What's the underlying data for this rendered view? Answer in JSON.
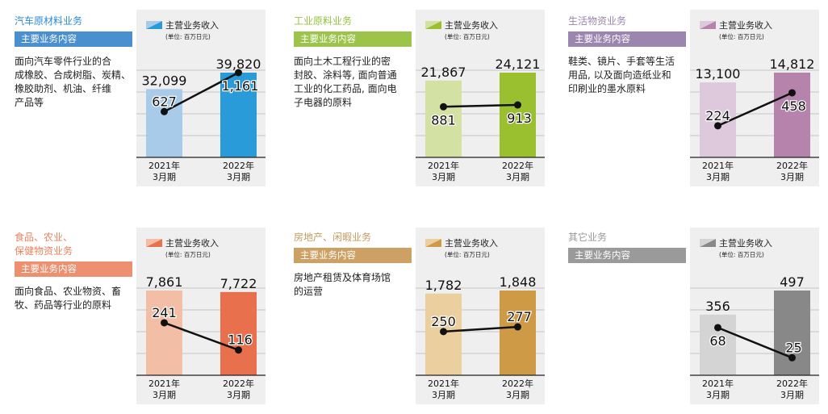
{
  "legend_label": "主营业务收入",
  "unit": "(单位: 百万日元)",
  "subtitle": "主要业务内容",
  "chart_data": [
    {
      "type": "bar+line",
      "title": "汽车原材料业务",
      "description": "面向汽车零件行业的合\n成橡胶、合成树脂、炭精、\n橡胶助剂、机油、纤维\n产品等",
      "categories": [
        "2021年\n3月期",
        "2022年\n3月期"
      ],
      "bar_values": [
        32099,
        39820
      ],
      "bar_labels": [
        "32,099",
        "39,820"
      ],
      "line_values": [
        627,
        1161
      ],
      "line_labels": [
        "627",
        "1,161"
      ],
      "bar_ylim": [
        0,
        39820
      ],
      "line_ylim": [
        0,
        1161
      ],
      "colors": {
        "title": "#2a8bd2",
        "sub": "#4a8fd0",
        "bar1": "#a9cbea",
        "bar2": "#2a9bd9"
      }
    },
    {
      "type": "bar+line",
      "title": "工业原料业务",
      "description": "面向土木工程行业的密\n封胶、涂料等, 面向普通\n工业的化工药品, 面向电\n子电器的原料",
      "categories": [
        "2021年\n3月期",
        "2022年\n3月期"
      ],
      "bar_values": [
        21867,
        24121
      ],
      "bar_labels": [
        "21,867",
        "24,121"
      ],
      "line_values": [
        881,
        913
      ],
      "line_labels": [
        "881",
        "913"
      ],
      "bar_ylim": [
        0,
        24121
      ],
      "line_ylim": [
        0,
        1475
      ],
      "colors": {
        "title": "#94c13e",
        "sub": "#9cc44a",
        "bar1": "#d3e1a2",
        "bar2": "#9abf2f"
      }
    },
    {
      "type": "bar+line",
      "title": "生活物资业务",
      "description": "鞋类、镜片、手套等生活\n用品, 以及面向造纸业和\n印刷业的墨水原料",
      "categories": [
        "2021年\n3月期",
        "2022年\n3月期"
      ],
      "bar_values": [
        13100,
        14812
      ],
      "bar_labels": [
        "13,100",
        "14,812"
      ],
      "line_values": [
        224,
        458
      ],
      "line_labels": [
        "224",
        "458"
      ],
      "bar_ylim": [
        0,
        14812
      ],
      "line_ylim": [
        0,
        601
      ],
      "colors": {
        "title": "#9a84ad",
        "sub": "#9b86b0",
        "bar1": "#ddc8dc",
        "bar2": "#b583ab"
      }
    },
    {
      "type": "bar+line",
      "title": "食品、农业、\n保健物资业务",
      "description": "面向食品、农业物资、畜\n牧、药品等行业的原料",
      "categories": [
        "2021年\n3月期",
        "2022年\n3月期"
      ],
      "bar_values": [
        7861,
        7722
      ],
      "bar_labels": [
        "7,861",
        "7,722"
      ],
      "line_values": [
        241,
        116
      ],
      "line_labels": [
        "241",
        "116"
      ],
      "bar_ylim": [
        0,
        7861
      ],
      "line_ylim": [
        0,
        389
      ],
      "colors": {
        "title": "#e8835f",
        "sub": "#ec9070",
        "bar1": "#f2bfa6",
        "bar2": "#e8704d"
      }
    },
    {
      "type": "bar+line",
      "title": "房地产、闲暇业务",
      "description": "房地产租赁及体育场馆\n的运营",
      "categories": [
        "2021年\n3月期",
        "2022年\n3月期"
      ],
      "bar_values": [
        1782,
        1848
      ],
      "bar_labels": [
        "1,782",
        "1,848"
      ],
      "line_values": [
        250,
        277
      ],
      "line_labels": [
        "250",
        "277"
      ],
      "bar_ylim": [
        0,
        1848
      ],
      "line_ylim": [
        0,
        485
      ],
      "colors": {
        "title": "#c49a5c",
        "sub": "#cda063",
        "bar1": "#eccf9f",
        "bar2": "#cf9a45"
      }
    },
    {
      "type": "bar+line",
      "title": "其它业务",
      "description": "",
      "categories": [
        "2021年\n3月期",
        "2022年\n3月期"
      ],
      "bar_values": [
        356,
        497
      ],
      "bar_labels": [
        "356",
        "497"
      ],
      "line_values": [
        68,
        25
      ],
      "line_labels": [
        "68",
        "25"
      ],
      "bar_ylim": [
        0,
        497
      ],
      "line_ylim": [
        0,
        121
      ],
      "colors": {
        "title": "#999999",
        "sub": "#9a9a9a",
        "bar1": "#d4d4d4",
        "bar2": "#888888"
      }
    }
  ]
}
